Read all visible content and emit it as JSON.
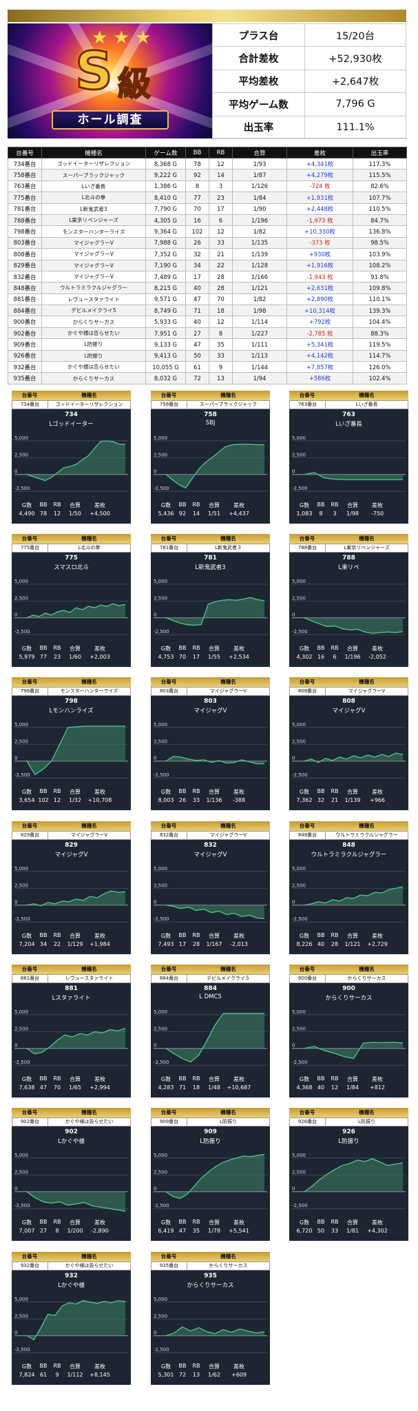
{
  "banner": {
    "grade": "S",
    "grade_kanji": "級",
    "ribbon": "ホール調査"
  },
  "summary": [
    {
      "label": "プラス台",
      "value": "15/20台"
    },
    {
      "label": "合計差枚",
      "value": "+52,930枚"
    },
    {
      "label": "平均差枚",
      "value": "+2,647枚"
    },
    {
      "label": "平均ゲーム数",
      "value": "7,796 G"
    },
    {
      "label": "出玉率",
      "value": "111.1%"
    }
  ],
  "table": {
    "headers": [
      "台番号",
      "機種名",
      "ゲーム数",
      "BB",
      "RB",
      "合算",
      "差枚",
      "出玉率"
    ],
    "rows": [
      [
        "734番台",
        "ゴッドイーターリザレクション",
        "8,368 G",
        "78",
        "12",
        "1/93",
        "+4,341枚",
        "117.3%"
      ],
      [
        "758番台",
        "スーパーブラックジャック",
        "9,222 G",
        "92",
        "14",
        "1/87",
        "+4,279枚",
        "115.5%"
      ],
      [
        "763番台",
        "Lいざ番長",
        "1,386 G",
        "8",
        "3",
        "1/126",
        "-724 枚",
        "82.6%"
      ],
      [
        "775番台",
        "L北斗の拳",
        "8,410 G",
        "77",
        "23",
        "1/84",
        "+1,931枚",
        "107.7%"
      ],
      [
        "781番台",
        "L新鬼武者3",
        "7,790 G",
        "70",
        "17",
        "1/90",
        "+2,448枚",
        "110.5%"
      ],
      [
        "788番台",
        "L東京リベンジャーズ",
        "4,305 G",
        "16",
        "6",
        "1/196",
        "-1,973 枚",
        "84.7%"
      ],
      [
        "798番台",
        "モンスターハンターライズ",
        "9,364 G",
        "102",
        "12",
        "1/82",
        "+10,330枚",
        "136.8%"
      ],
      [
        "803番台",
        "マイジャグラーV",
        "7,988 G",
        "26",
        "33",
        "1/135",
        "-373 枚",
        "98.5%"
      ],
      [
        "808番台",
        "マイジャグラーV",
        "7,352 G",
        "32",
        "21",
        "1/139",
        "+930枚",
        "103.9%"
      ],
      [
        "829番台",
        "マイジャグラーV",
        "7,190 G",
        "34",
        "22",
        "1/128",
        "+1,916枚",
        "108.2%"
      ],
      [
        "832番台",
        "マイジャグラーV",
        "7,489 G",
        "17",
        "28",
        "1/166",
        "-1,943 枚",
        "91.8%"
      ],
      [
        "848番台",
        "ウルトラミラクルジャグラー",
        "8,215 G",
        "40",
        "28",
        "1/121",
        "+2,631枚",
        "109.8%"
      ],
      [
        "881番台",
        "レヴュースタァライト",
        "9,571 G",
        "47",
        "70",
        "1/82",
        "+2,890枚",
        "110.1%"
      ],
      [
        "884番台",
        "デビルメイクライ5",
        "8,749 G",
        "71",
        "18",
        "1/98",
        "+10,314枚",
        "139.3%"
      ],
      [
        "900番台",
        "からくりサーカス",
        "5,933 G",
        "40",
        "12",
        "1/114",
        "+792枚",
        "104.4%"
      ],
      [
        "902番台",
        "かぐや様は告らせたい",
        "7,951 G",
        "27",
        "8",
        "1/227",
        "-2,785 枚",
        "88.3%"
      ],
      [
        "909番台",
        "L防振り",
        "9,133 G",
        "47",
        "35",
        "1/111",
        "+5,341枚",
        "119.5%"
      ],
      [
        "926番台",
        "L防振り",
        "9,413 G",
        "50",
        "33",
        "1/113",
        "+4,142枚",
        "114.7%"
      ],
      [
        "932番台",
        "かぐや様は告らせたい",
        "10,055 G",
        "61",
        "9",
        "1/144",
        "+7,857枚",
        "126.0%"
      ],
      [
        "935番台",
        "からくりサーカス",
        "8,032 G",
        "72",
        "13",
        "1/94",
        "+586枚",
        "102.4%"
      ]
    ]
  },
  "card_labels": {
    "hdr_num": "台番号",
    "hdr_name": "機種名",
    "y_top": "5,000",
    "y_mid": "2,500",
    "y_zero": "0",
    "y_neg": "-2,500",
    "f_g": "G数",
    "f_bb": "BB",
    "f_rb": "RB",
    "f_total": "合算",
    "f_diff": "差枚"
  },
  "cards": [
    {
      "num": "734番台",
      "machine": "ゴッドイーターリザレクション",
      "title_num": "734",
      "title": "Lゴッドイーター",
      "g": "4,490",
      "bb": "78",
      "rb": "12",
      "total": "1/50",
      "diff": "+4,500",
      "curve": [
        0,
        -300,
        -600,
        -900,
        -400,
        300,
        1000,
        1200,
        1500,
        2200,
        2800,
        3900,
        4900,
        5000,
        4900,
        4500,
        4500
      ]
    },
    {
      "num": "758番台",
      "machine": "スーパーブラックジャック",
      "title_num": "758",
      "title": "SBJ",
      "g": "5,436",
      "bb": "92",
      "rb": "14",
      "total": "1/51",
      "diff": "+4,437",
      "curve": [
        0,
        -800,
        -1500,
        -2000,
        -600,
        800,
        1800,
        2500,
        3300,
        4100,
        4400,
        4500,
        4500,
        4500,
        4400,
        4437
      ]
    },
    {
      "num": "763番台",
      "machine": "Lいざ番長",
      "title_num": "763",
      "title": "Lいざ番長",
      "g": "1,083",
      "bb": "8",
      "rb": "3",
      "total": "1/98",
      "diff": "-750",
      "curve": [
        0,
        300,
        -500,
        -700,
        -750,
        -750,
        -750,
        -750,
        -750,
        -750,
        -750
      ]
    },
    {
      "num": "775番台",
      "machine": "L北斗の拳",
      "title_num": "775",
      "title": "スマスロ北斗",
      "g": "5,979",
      "bb": "77",
      "rb": "23",
      "total": "1/60",
      "diff": "+2,003",
      "curve": [
        0,
        400,
        200,
        700,
        400,
        900,
        1100,
        800,
        1500,
        1200,
        1700,
        1500,
        1900,
        1700,
        2100,
        1800,
        2003
      ]
    },
    {
      "num": "781番台",
      "machine": "L新鬼武者３",
      "title_num": "781",
      "title": "L新鬼武者3",
      "g": "4,753",
      "bb": "70",
      "rb": "17",
      "total": "1/55",
      "diff": "+2,534",
      "curve": [
        0,
        -400,
        -800,
        -1000,
        -1100,
        -1000,
        2000,
        2400,
        2600,
        2700,
        2600,
        2800,
        3000,
        2700,
        2534
      ]
    },
    {
      "num": "788番台",
      "machine": "L東京リベンジャーズ",
      "title_num": "788",
      "title": "L東リベ",
      "g": "4,302",
      "bb": "16",
      "rb": "6",
      "total": "1/196",
      "diff": "-2,052",
      "curve": [
        0,
        -500,
        -900,
        -1300,
        -1200,
        -1600,
        -1800,
        -1700,
        -2100,
        -2300,
        -2200,
        -2100,
        -2200,
        -2052
      ]
    },
    {
      "num": "798番台",
      "machine": "モンスターハンターライズ",
      "title_num": "798",
      "title": "Lモンハンライズ",
      "g": "3,654",
      "bb": "102",
      "rb": "12",
      "total": "1/32",
      "diff": "+10,708",
      "curve": [
        0,
        -2000,
        -1200,
        0,
        2500,
        5000,
        5100,
        5200,
        5200,
        5200,
        5200,
        5200,
        5200
      ]
    },
    {
      "num": "803番台",
      "machine": "マイジャグラーV",
      "title_num": "803",
      "title": "マイジャグV",
      "g": "8,003",
      "bb": "26",
      "rb": "33",
      "total": "1/136",
      "diff": "-388",
      "curve": [
        0,
        700,
        600,
        300,
        100,
        200,
        -200,
        100,
        -300,
        -200,
        200,
        -100,
        -400,
        -388
      ]
    },
    {
      "num": "808番台",
      "machine": "マイジャグラーV",
      "title_num": "808",
      "title": "マイジャグV",
      "g": "7,362",
      "bb": "32",
      "rb": "21",
      "total": "1/139",
      "diff": "+966",
      "curve": [
        0,
        300,
        -200,
        400,
        100,
        600,
        300,
        800,
        500,
        900,
        600,
        1000,
        700,
        1200,
        966
      ]
    },
    {
      "num": "829番台",
      "machine": "マイジャグラーV",
      "title_num": "829",
      "title": "マイジャグV",
      "g": "7,204",
      "bb": "34",
      "rb": "22",
      "total": "1/129",
      "diff": "+1,984",
      "curve": [
        0,
        200,
        -100,
        400,
        200,
        600,
        500,
        900,
        700,
        1300,
        1100,
        1700,
        2100,
        1900,
        1984
      ]
    },
    {
      "num": "832番台",
      "machine": "マイジャグラーV",
      "title_num": "832",
      "title": "マイジャグV",
      "g": "7,493",
      "bb": "17",
      "rb": "28",
      "total": "1/167",
      "diff": "-2,013",
      "curve": [
        0,
        -200,
        -500,
        -300,
        -800,
        -600,
        -1100,
        -900,
        -1400,
        -1200,
        -1700,
        -1500,
        -1900,
        -2013
      ]
    },
    {
      "num": "848番台",
      "machine": "ウルトラミラクルジャグラー",
      "title_num": "848",
      "title": "ウルトラミラクルジャグラー",
      "g": "8,226",
      "bb": "40",
      "rb": "28",
      "total": "1/121",
      "diff": "+2,729",
      "curve": [
        0,
        200,
        500,
        300,
        800,
        600,
        1100,
        1000,
        1500,
        1400,
        1900,
        1800,
        2300,
        2500,
        2729
      ]
    },
    {
      "num": "881番台",
      "machine": "レヴュースタァライト",
      "title_num": "881",
      "title": "Lスタァライト",
      "g": "7,638",
      "bb": "47",
      "rb": "70",
      "total": "1/65",
      "diff": "+2,994",
      "curve": [
        0,
        -800,
        -600,
        200,
        1200,
        2000,
        1700,
        2200,
        2000,
        2500,
        2300,
        2800,
        2600,
        2994
      ]
    },
    {
      "num": "884番台",
      "machine": "デビルメイクライ５",
      "title_num": "884",
      "title": "L DMC5",
      "g": "4,283",
      "bb": "71",
      "rb": "18",
      "total": "1/48",
      "diff": "+10,687",
      "curve": [
        0,
        -800,
        -1500,
        -2000,
        -1000,
        1200,
        3500,
        5200,
        5200,
        5200,
        5200,
        5200,
        5200
      ]
    },
    {
      "num": "900番台",
      "machine": "からくりサーカス",
      "title_num": "900",
      "title": "からくりサーカス",
      "g": "4,368",
      "bb": "40",
      "rb": "12",
      "total": "1/84",
      "diff": "+812",
      "curve": [
        0,
        300,
        -300,
        -700,
        -1200,
        -1500,
        800,
        900,
        850,
        900,
        812
      ]
    },
    {
      "num": "902番台",
      "machine": "かぐや様は告らせたい",
      "title_num": "902",
      "title": "Lかぐや様",
      "g": "7,007",
      "bb": "27",
      "rb": "8",
      "total": "1/200",
      "diff": "-2,890",
      "curve": [
        0,
        -900,
        -1500,
        -1700,
        -1500,
        -2000,
        -1800,
        -1600,
        -2100,
        -2300,
        -2500,
        -2700,
        -2890
      ]
    },
    {
      "num": "909番台",
      "machine": "L防振り",
      "title_num": "909",
      "title": "L防振り",
      "g": "6,419",
      "bb": "47",
      "rb": "35",
      "total": "1/78",
      "diff": "+5,541",
      "curve": [
        0,
        -700,
        -1000,
        -400,
        800,
        2000,
        2900,
        3700,
        4300,
        4700,
        5000,
        5300,
        5200,
        5400,
        5541
      ]
    },
    {
      "num": "926番台",
      "machine": "L防振り",
      "title_num": "926",
      "title": "L防振り",
      "g": "6,720",
      "bb": "50",
      "rb": "33",
      "total": "1/81",
      "diff": "+4,302",
      "curve": [
        0,
        800,
        1800,
        2600,
        3300,
        3900,
        4200,
        4700,
        4500,
        4900,
        4400,
        3900,
        4100,
        4302
      ]
    },
    {
      "num": "932番台",
      "machine": "かぐや様は告らせたい",
      "title_num": "932",
      "title": "Lかぐや様",
      "g": "7,824",
      "bb": "61",
      "rb": "9",
      "total": "1/112",
      "diff": "+8,145",
      "curve": [
        0,
        -600,
        1200,
        3200,
        3000,
        4400,
        4900,
        4700,
        5200,
        5000,
        4800,
        5100,
        4900,
        5200,
        5100
      ]
    },
    {
      "num": "935番台",
      "machine": "からくりサーカス",
      "title_num": "935",
      "title": "からくりサーカス",
      "g": "5,301",
      "bb": "72",
      "rb": "13",
      "total": "1/62",
      "diff": "+609",
      "curve": [
        0,
        400,
        1300,
        700,
        1200,
        600,
        300,
        900,
        500,
        1000,
        700,
        400,
        609
      ]
    }
  ],
  "colors": {
    "pos": "#1f3bd4",
    "neg": "#d42020",
    "chart_bg": "#1e2633",
    "chart_line": "#4fc08a",
    "chart_fill": "#3a7a62"
  }
}
